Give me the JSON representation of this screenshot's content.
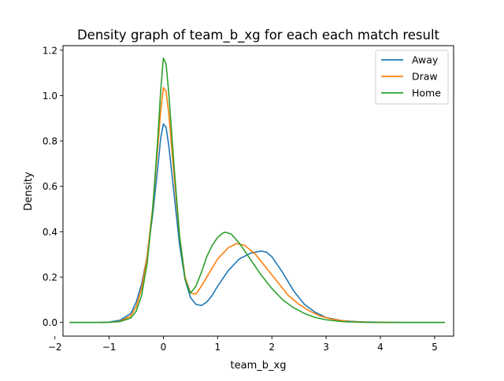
{
  "chart_data": {
    "type": "line",
    "title": "Density graph of team_b_xg for each each match result",
    "xlabel": "team_b_xg",
    "ylabel": "Density",
    "xlim": [
      -1.85,
      5.35
    ],
    "ylim": [
      -0.06,
      1.22
    ],
    "xticks": [
      -2,
      -1,
      0,
      1,
      2,
      3,
      4,
      5
    ],
    "xtick_labels": [
      "−2",
      "−1",
      "0",
      "1",
      "2",
      "3",
      "4",
      "5"
    ],
    "yticks": [
      0.0,
      0.2,
      0.4,
      0.6,
      0.8,
      1.0,
      1.2
    ],
    "ytick_labels": [
      "0.0",
      "0.2",
      "0.4",
      "0.6",
      "0.8",
      "1.0",
      "1.2"
    ],
    "grid": false,
    "legend_position": "top-right",
    "series": [
      {
        "name": "Away",
        "color": "#1f77b4",
        "points": [
          [
            -1.72,
            0.0
          ],
          [
            -1.2,
            0.0
          ],
          [
            -1.0,
            0.002
          ],
          [
            -0.8,
            0.01
          ],
          [
            -0.6,
            0.04
          ],
          [
            -0.5,
            0.09
          ],
          [
            -0.4,
            0.17
          ],
          [
            -0.3,
            0.29
          ],
          [
            -0.2,
            0.47
          ],
          [
            -0.1,
            0.69
          ],
          [
            -0.05,
            0.81
          ],
          [
            0.0,
            0.875
          ],
          [
            0.05,
            0.86
          ],
          [
            0.1,
            0.78
          ],
          [
            0.2,
            0.56
          ],
          [
            0.3,
            0.34
          ],
          [
            0.4,
            0.19
          ],
          [
            0.5,
            0.11
          ],
          [
            0.6,
            0.08
          ],
          [
            0.7,
            0.075
          ],
          [
            0.8,
            0.09
          ],
          [
            0.9,
            0.12
          ],
          [
            1.0,
            0.16
          ],
          [
            1.2,
            0.23
          ],
          [
            1.4,
            0.28
          ],
          [
            1.6,
            0.305
          ],
          [
            1.8,
            0.315
          ],
          [
            1.9,
            0.31
          ],
          [
            2.0,
            0.29
          ],
          [
            2.2,
            0.22
          ],
          [
            2.4,
            0.14
          ],
          [
            2.6,
            0.08
          ],
          [
            2.8,
            0.045
          ],
          [
            3.0,
            0.022
          ],
          [
            3.3,
            0.008
          ],
          [
            3.6,
            0.003
          ],
          [
            4.0,
            0.001
          ],
          [
            4.5,
            0.0
          ],
          [
            5.18,
            0.0
          ]
        ]
      },
      {
        "name": "Draw",
        "color": "#ff7f0e",
        "points": [
          [
            -1.72,
            0.0
          ],
          [
            -1.2,
            0.0
          ],
          [
            -1.0,
            0.001
          ],
          [
            -0.8,
            0.005
          ],
          [
            -0.6,
            0.03
          ],
          [
            -0.5,
            0.07
          ],
          [
            -0.4,
            0.15
          ],
          [
            -0.3,
            0.29
          ],
          [
            -0.2,
            0.5
          ],
          [
            -0.1,
            0.78
          ],
          [
            -0.05,
            0.93
          ],
          [
            0.0,
            1.035
          ],
          [
            0.05,
            1.02
          ],
          [
            0.1,
            0.92
          ],
          [
            0.2,
            0.64
          ],
          [
            0.3,
            0.38
          ],
          [
            0.4,
            0.2
          ],
          [
            0.5,
            0.13
          ],
          [
            0.6,
            0.125
          ],
          [
            0.7,
            0.16
          ],
          [
            0.8,
            0.2
          ],
          [
            1.0,
            0.28
          ],
          [
            1.2,
            0.33
          ],
          [
            1.35,
            0.348
          ],
          [
            1.5,
            0.34
          ],
          [
            1.7,
            0.3
          ],
          [
            1.9,
            0.24
          ],
          [
            2.1,
            0.18
          ],
          [
            2.3,
            0.12
          ],
          [
            2.5,
            0.08
          ],
          [
            2.7,
            0.05
          ],
          [
            2.9,
            0.028
          ],
          [
            3.1,
            0.015
          ],
          [
            3.4,
            0.005
          ],
          [
            3.8,
            0.001
          ],
          [
            4.5,
            0.0
          ],
          [
            5.18,
            0.0
          ]
        ]
      },
      {
        "name": "Home",
        "color": "#2ca02c",
        "points": [
          [
            -1.72,
            0.0
          ],
          [
            -1.2,
            0.0
          ],
          [
            -1.0,
            0.001
          ],
          [
            -0.8,
            0.004
          ],
          [
            -0.6,
            0.02
          ],
          [
            -0.5,
            0.05
          ],
          [
            -0.4,
            0.12
          ],
          [
            -0.3,
            0.26
          ],
          [
            -0.2,
            0.49
          ],
          [
            -0.1,
            0.82
          ],
          [
            -0.05,
            1.02
          ],
          [
            0.0,
            1.165
          ],
          [
            0.05,
            1.14
          ],
          [
            0.1,
            1.01
          ],
          [
            0.2,
            0.68
          ],
          [
            0.3,
            0.38
          ],
          [
            0.4,
            0.19
          ],
          [
            0.5,
            0.13
          ],
          [
            0.6,
            0.16
          ],
          [
            0.7,
            0.22
          ],
          [
            0.8,
            0.29
          ],
          [
            0.9,
            0.34
          ],
          [
            1.0,
            0.375
          ],
          [
            1.1,
            0.395
          ],
          [
            1.15,
            0.398
          ],
          [
            1.25,
            0.39
          ],
          [
            1.4,
            0.35
          ],
          [
            1.6,
            0.28
          ],
          [
            1.8,
            0.21
          ],
          [
            2.0,
            0.15
          ],
          [
            2.2,
            0.1
          ],
          [
            2.4,
            0.065
          ],
          [
            2.6,
            0.04
          ],
          [
            2.8,
            0.022
          ],
          [
            3.0,
            0.012
          ],
          [
            3.3,
            0.004
          ],
          [
            3.7,
            0.001
          ],
          [
            4.5,
            0.0
          ],
          [
            5.18,
            0.0
          ]
        ]
      }
    ]
  }
}
